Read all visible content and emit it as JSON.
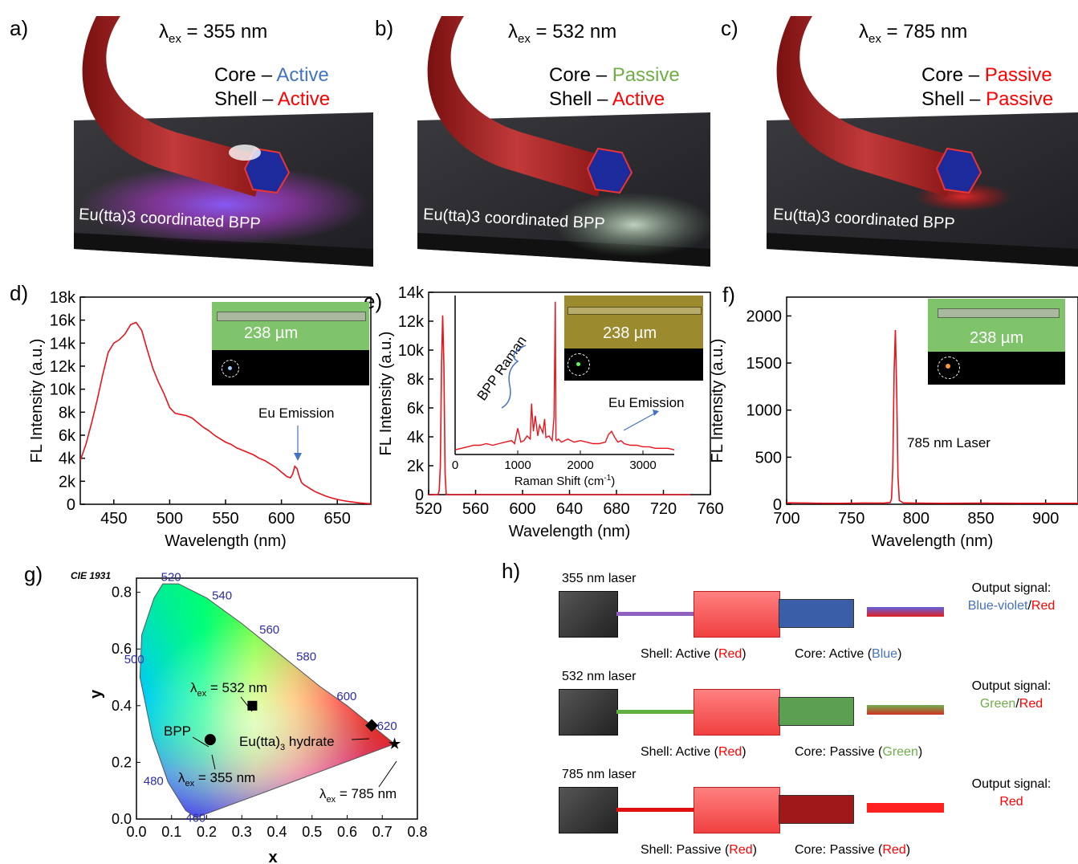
{
  "panels": {
    "a": {
      "label": "a)",
      "lambda_prefix": "λ",
      "lambda_sub": "ex",
      "lambda_value": " = 355 nm",
      "core_label": "Core – ",
      "core_state": "Active",
      "shell_label": "Shell – ",
      "shell_state": "Active",
      "substrate_label": "Eu(tta)3 coordinated BPP"
    },
    "b": {
      "label": "b)",
      "lambda_prefix": "λ",
      "lambda_sub": "ex",
      "lambda_value": " = 532 nm",
      "core_label": "Core – ",
      "core_state": "Passive",
      "shell_label": "Shell – ",
      "shell_state": "Active",
      "substrate_label": "Eu(tta)3 coordinated BPP"
    },
    "c": {
      "label": "c)",
      "lambda_prefix": "λ",
      "lambda_sub": "ex",
      "lambda_value": " = 785 nm",
      "core_label": "Core – ",
      "core_state": "Passive",
      "shell_label": "Shell – ",
      "shell_state": "Passive",
      "substrate_label": "Eu(tta)3 coordinated BPP"
    },
    "d": {
      "label": "d)"
    },
    "e": {
      "label": "e)"
    },
    "f": {
      "label": "f)"
    },
    "g": {
      "label": "g)"
    },
    "h": {
      "label": "h)"
    }
  },
  "colors": {
    "core_blue": "#4472c4",
    "green": "#70ad47",
    "red": "#ff0000",
    "trace": "#e8141c",
    "annot_arrow": "#4472c4"
  },
  "chart_data": [
    {
      "id": "d",
      "type": "line",
      "ylabel": "FL Intensity (a.u.)",
      "xlabel": "Wavelength (nm)",
      "xlim": [
        420,
        680
      ],
      "ylim": [
        0,
        18000
      ],
      "xticks": [
        450,
        500,
        550,
        600,
        650
      ],
      "xtick_labels": [
        "450",
        "500",
        "550",
        "600",
        "650"
      ],
      "yticks": [
        0,
        2000,
        4000,
        6000,
        8000,
        10000,
        12000,
        14000,
        16000,
        18000
      ],
      "ytick_labels": [
        "0",
        "2k",
        "4k",
        "6k",
        "8k",
        "10k",
        "12k",
        "14k",
        "16k",
        "18k"
      ],
      "annotation": "Eu Emission",
      "inset_scale": "238 µm",
      "x": [
        420,
        425,
        430,
        435,
        440,
        445,
        450,
        455,
        460,
        465,
        470,
        475,
        480,
        485,
        490,
        495,
        500,
        505,
        510,
        515,
        520,
        525,
        530,
        535,
        540,
        545,
        550,
        555,
        560,
        565,
        570,
        575,
        580,
        585,
        590,
        595,
        600,
        605,
        608,
        610,
        612,
        614,
        616,
        618,
        620,
        625,
        630,
        635,
        640,
        645,
        650,
        655,
        660,
        665,
        670,
        675,
        680
      ],
      "y": [
        3800,
        5200,
        7000,
        9000,
        11200,
        13200,
        14000,
        14300,
        14800,
        15600,
        15800,
        15100,
        13400,
        11800,
        10600,
        9600,
        8400,
        7900,
        7800,
        7700,
        7500,
        7100,
        6700,
        6400,
        6000,
        5700,
        5400,
        5200,
        4900,
        4700,
        4500,
        4300,
        4000,
        3800,
        3500,
        3200,
        2800,
        2400,
        2300,
        2600,
        3300,
        3100,
        2400,
        1900,
        1700,
        1400,
        1100,
        900,
        700,
        550,
        420,
        320,
        240,
        180,
        120,
        80,
        50
      ]
    },
    {
      "id": "e",
      "type": "line",
      "ylabel": "FL Intensity (a.u.)",
      "xlabel": "Wavelength (nm)",
      "xlim": [
        520,
        760
      ],
      "ylim": [
        0,
        14000
      ],
      "xticks": [
        520,
        560,
        600,
        640,
        680,
        720,
        760
      ],
      "xtick_labels": [
        "520",
        "560",
        "600",
        "640",
        "680",
        "720",
        "760"
      ],
      "yticks": [
        0,
        2000,
        4000,
        6000,
        8000,
        10000,
        12000,
        14000
      ],
      "ytick_labels": [
        "0",
        "2k",
        "4k",
        "6k",
        "8k",
        "10k",
        "12k",
        "14k"
      ],
      "x": [
        520,
        528,
        529,
        530,
        531,
        532,
        533,
        534,
        535,
        545,
        560,
        600,
        640,
        680,
        720,
        743
      ],
      "y": [
        0,
        0,
        300,
        2000,
        9000,
        12400,
        9000,
        1500,
        0,
        0,
        0,
        0,
        0,
        0,
        0,
        0
      ],
      "inset": {
        "xlabel": "Raman Shift (cm-1)",
        "xticks": [
          0,
          1000,
          2000,
          3000
        ],
        "xtick_labels": [
          "0",
          "1000",
          "2000",
          "3000"
        ],
        "annotation_raman": "BPP Raman",
        "annotation_eu": "Eu Emission",
        "inset_scale": "238 µm",
        "x": [
          0,
          100,
          200,
          300,
          400,
          500,
          600,
          700,
          800,
          900,
          950,
          1000,
          1050,
          1100,
          1150,
          1200,
          1220,
          1250,
          1280,
          1320,
          1350,
          1400,
          1430,
          1450,
          1500,
          1550,
          1580,
          1600,
          1610,
          1620,
          1650,
          1700,
          1800,
          1900,
          2000,
          2100,
          2200,
          2300,
          2400,
          2450,
          2500,
          2550,
          2600,
          2650,
          2700,
          2800,
          2900,
          3000,
          3100,
          3200,
          3300,
          3400,
          3500
        ],
        "y": [
          3200,
          3300,
          3400,
          3500,
          3500,
          3600,
          3500,
          3600,
          3700,
          3800,
          3600,
          4600,
          3700,
          3800,
          4100,
          3900,
          6200,
          4400,
          5400,
          4100,
          4800,
          4300,
          5200,
          4000,
          4100,
          3800,
          5300,
          12800,
          3900,
          3800,
          3900,
          3700,
          3900,
          3700,
          3800,
          3700,
          3600,
          3600,
          3700,
          4200,
          4400,
          4000,
          3700,
          3800,
          3600,
          3500,
          3500,
          3400,
          3400,
          3300,
          3300,
          3300,
          3200
        ]
      }
    },
    {
      "id": "f",
      "type": "line",
      "ylabel": "FL Intensity (a.u.)",
      "xlabel": "Wavelength (nm)",
      "xlim": [
        700,
        925
      ],
      "ylim": [
        0,
        2200
      ],
      "xticks": [
        700,
        750,
        800,
        850,
        900
      ],
      "xtick_labels": [
        "700",
        "750",
        "800",
        "850",
        "900"
      ],
      "yticks": [
        0,
        500,
        1000,
        1500,
        2000
      ],
      "ytick_labels": [
        "0",
        "500",
        "1000",
        "1500",
        "2000"
      ],
      "annotation": "785 nm Laser",
      "inset_scale": "238 µm",
      "x": [
        700,
        720,
        740,
        760,
        775,
        780,
        781,
        782,
        783,
        784,
        785,
        786,
        787,
        790,
        800,
        820,
        850,
        880,
        925
      ],
      "y": [
        15,
        12,
        10,
        14,
        12,
        20,
        60,
        400,
        1400,
        1850,
        1200,
        300,
        40,
        15,
        12,
        10,
        12,
        10,
        10
      ]
    },
    {
      "id": "g",
      "type": "scatter",
      "title": "CIE 1931",
      "xlabel": "x",
      "ylabel": "y",
      "xlim": [
        0,
        0.8
      ],
      "ylim": [
        0,
        0.85
      ],
      "xticks": [
        0,
        0.1,
        0.2,
        0.3,
        0.4,
        0.5,
        0.6,
        0.7,
        0.8
      ],
      "xtick_labels": [
        "0.0",
        "0.1",
        "0.2",
        "0.3",
        "0.4",
        "0.5",
        "0.6",
        "0.7",
        "0.8"
      ],
      "yticks": [
        0,
        0.2,
        0.4,
        0.6,
        0.8
      ],
      "ytick_labels": [
        "0.0",
        "0.2",
        "0.4",
        "0.6",
        "0.8"
      ],
      "wavelength_labels": [
        "460",
        "480",
        "500",
        "520",
        "540",
        "560",
        "580",
        "600",
        "620"
      ],
      "points": [
        {
          "x": 0.33,
          "y": 0.4,
          "label": "λex = 532 nm",
          "marker": "square"
        },
        {
          "x": 0.21,
          "y": 0.28,
          "label": "BPP / λex = 355 nm",
          "marker": "circle"
        },
        {
          "x": 0.67,
          "y": 0.33,
          "label": "Eu(tta)3 hydrate",
          "marker": "diamond"
        },
        {
          "x": 0.735,
          "y": 0.265,
          "label": "λex = 785 nm",
          "marker": "star"
        }
      ],
      "text_532": "λex = 532 nm",
      "text_bpp": "BPP",
      "text_355": "λex = 355 nm",
      "text_eu": "Eu(tta)3 hydrate",
      "text_785": "λex = 785 nm"
    }
  ],
  "h": {
    "rows": [
      {
        "laser": "355 nm laser",
        "output_title": "Output signal:",
        "output_a": "Blue-violet",
        "output_sep": "/",
        "output_b": "Red",
        "shell": "Shell: Active (",
        "shell_c": "Red",
        "core": "Core: Active (",
        "core_c": "Blue"
      },
      {
        "laser": "532 nm laser",
        "output_title": "Output signal:",
        "output_a": "Green",
        "output_sep": "/",
        "output_b": "Red",
        "shell": "Shell: Active (",
        "shell_c": "Red",
        "core": "Core: Passive (",
        "core_c": "Green"
      },
      {
        "laser": "785 nm laser",
        "output_title": "Output signal:",
        "output_a": "Red",
        "output_sep": "",
        "output_b": "",
        "shell": "Shell: Passive (",
        "shell_c": "Red",
        "core": "Core: Passive (",
        "core_c": "Red"
      }
    ],
    "close": ")"
  }
}
